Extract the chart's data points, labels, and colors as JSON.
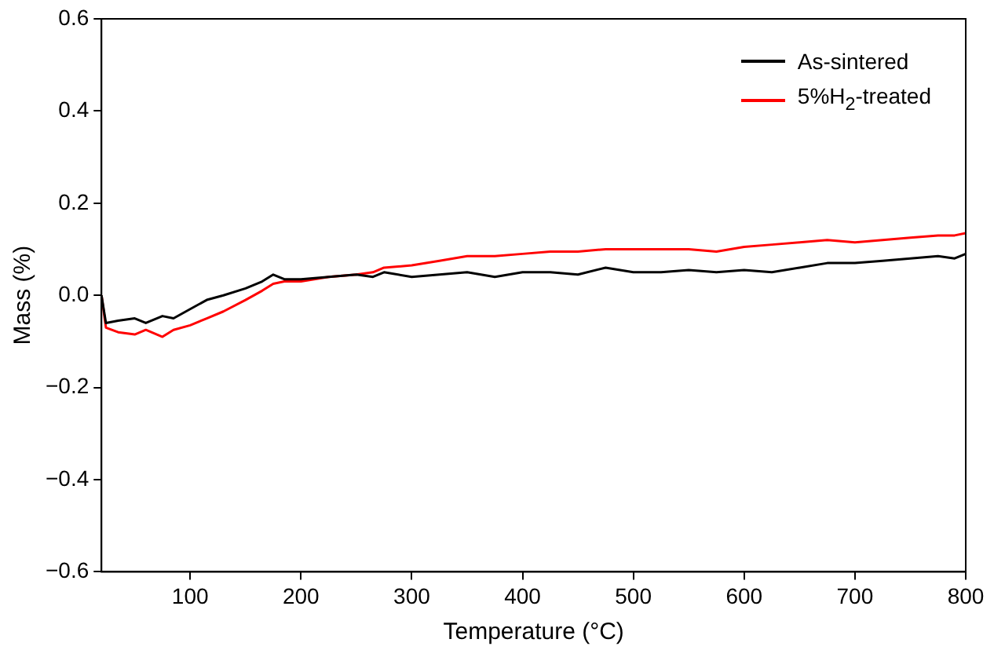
{
  "chart_data": {
    "type": "line",
    "xlabel": "Temperature (°C)",
    "ylabel": "Mass (%)",
    "xlim": [
      20,
      800
    ],
    "ylim": [
      -0.6,
      0.6
    ],
    "xticks": [
      100,
      200,
      300,
      400,
      500,
      600,
      700,
      800
    ],
    "yticks": [
      {
        "value": -0.6,
        "label": "−0.6"
      },
      {
        "value": -0.4,
        "label": "−0.4"
      },
      {
        "value": -0.2,
        "label": "−0.2"
      },
      {
        "value": 0,
        "label": "0.0"
      },
      {
        "value": 0.2,
        "label": "0.2"
      },
      {
        "value": 0.4,
        "label": "0.4"
      },
      {
        "value": 0.6,
        "label": "0.6"
      }
    ],
    "legend": "top right",
    "grid": false,
    "marker": "none",
    "line_style": "solid",
    "series": [
      {
        "name": "As-sintered",
        "color": "#000000",
        "x": [
          20,
          24,
          35,
          50,
          60,
          75,
          85,
          100,
          115,
          130,
          150,
          165,
          175,
          185,
          200,
          225,
          250,
          265,
          275,
          300,
          325,
          350,
          375,
          400,
          425,
          450,
          475,
          500,
          525,
          550,
          575,
          600,
          625,
          650,
          675,
          700,
          725,
          750,
          775,
          790,
          800
        ],
        "values": [
          0.0,
          -0.06,
          -0.055,
          -0.05,
          -0.06,
          -0.045,
          -0.05,
          -0.03,
          -0.01,
          0.0,
          0.015,
          0.03,
          0.045,
          0.035,
          0.035,
          0.04,
          0.045,
          0.04,
          0.05,
          0.04,
          0.045,
          0.05,
          0.04,
          0.05,
          0.05,
          0.045,
          0.06,
          0.05,
          0.05,
          0.055,
          0.05,
          0.055,
          0.05,
          0.06,
          0.07,
          0.07,
          0.075,
          0.08,
          0.085,
          0.08,
          0.09
        ]
      },
      {
        "name": "5%H$_{2}$-treated",
        "color": "#ff0000",
        "x": [
          20,
          24,
          35,
          50,
          60,
          75,
          85,
          100,
          115,
          130,
          150,
          165,
          175,
          185,
          200,
          225,
          250,
          265,
          275,
          300,
          325,
          350,
          375,
          400,
          425,
          450,
          475,
          500,
          525,
          550,
          575,
          600,
          625,
          650,
          675,
          700,
          725,
          750,
          775,
          790,
          800
        ],
        "values": [
          0.0,
          -0.07,
          -0.08,
          -0.085,
          -0.075,
          -0.09,
          -0.075,
          -0.065,
          -0.05,
          -0.035,
          -0.01,
          0.01,
          0.025,
          0.03,
          0.03,
          0.04,
          0.045,
          0.05,
          0.06,
          0.065,
          0.075,
          0.085,
          0.085,
          0.09,
          0.095,
          0.095,
          0.1,
          0.1,
          0.1,
          0.1,
          0.095,
          0.105,
          0.11,
          0.115,
          0.12,
          0.115,
          0.12,
          0.125,
          0.13,
          0.13,
          0.135
        ]
      }
    ]
  }
}
